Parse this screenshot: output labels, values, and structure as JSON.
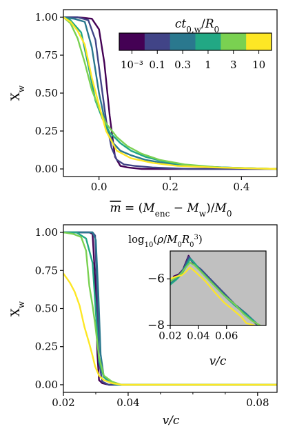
{
  "chart_data": [
    {
      "type": "line",
      "xlabel": "m̄ = (M_enc − M_w)/M_0",
      "ylabel": "X_w",
      "xlim": [
        -0.1,
        0.5
      ],
      "ylim": [
        -0.05,
        1.05
      ],
      "xticks": [
        "0.0",
        "0.2",
        "0.4"
      ],
      "yticks": [
        "0.00",
        "0.25",
        "0.50",
        "0.75",
        "1.00"
      ],
      "colorbar": {
        "title": "ct_0,w / R_0",
        "labels": [
          "10⁻³",
          "0.1",
          "0.3",
          "1",
          "3",
          "10"
        ],
        "colors": [
          "#440154",
          "#414487",
          "#2a788e",
          "#22a884",
          "#7ad151",
          "#fde725"
        ]
      },
      "series": [
        {
          "color": "#440154",
          "x": [
            -0.1,
            -0.06,
            -0.02,
            0.0,
            0.015,
            0.03,
            0.045,
            0.06,
            0.08,
            0.12,
            0.2,
            0.5
          ],
          "y": [
            1.0,
            1.0,
            0.99,
            0.92,
            0.7,
            0.35,
            0.08,
            0.02,
            0.01,
            0.0,
            0.0,
            0.0
          ]
        },
        {
          "color": "#414487",
          "x": [
            -0.1,
            -0.06,
            -0.03,
            -0.01,
            0.005,
            0.02,
            0.035,
            0.05,
            0.07,
            0.1,
            0.15,
            0.25,
            0.5
          ],
          "y": [
            1.0,
            1.0,
            0.98,
            0.85,
            0.58,
            0.32,
            0.14,
            0.06,
            0.03,
            0.02,
            0.01,
            0.0,
            0.0
          ]
        },
        {
          "color": "#2a788e",
          "x": [
            -0.1,
            -0.07,
            -0.04,
            -0.02,
            0.0,
            0.02,
            0.04,
            0.06,
            0.09,
            0.13,
            0.18,
            0.25,
            0.35,
            0.5
          ],
          "y": [
            1.0,
            0.99,
            0.97,
            0.8,
            0.5,
            0.28,
            0.17,
            0.12,
            0.09,
            0.06,
            0.04,
            0.02,
            0.01,
            0.0
          ]
        },
        {
          "color": "#22a884",
          "x": [
            -0.1,
            -0.08,
            -0.05,
            -0.03,
            -0.01,
            0.01,
            0.03,
            0.06,
            0.09,
            0.13,
            0.18,
            0.25,
            0.35,
            0.5
          ],
          "y": [
            1.0,
            0.98,
            0.9,
            0.68,
            0.45,
            0.33,
            0.24,
            0.17,
            0.12,
            0.08,
            0.05,
            0.02,
            0.01,
            0.0
          ]
        },
        {
          "color": "#7ad151",
          "x": [
            -0.1,
            -0.08,
            -0.06,
            -0.04,
            -0.02,
            0.0,
            0.02,
            0.05,
            0.08,
            0.12,
            0.17,
            0.24,
            0.34,
            0.5
          ],
          "y": [
            1.0,
            0.96,
            0.86,
            0.7,
            0.52,
            0.4,
            0.3,
            0.21,
            0.15,
            0.1,
            0.06,
            0.03,
            0.01,
            0.0
          ]
        },
        {
          "color": "#fde725",
          "x": [
            -0.1,
            -0.08,
            -0.06,
            -0.04,
            -0.02,
            0.0,
            0.02,
            0.05,
            0.09,
            0.15,
            0.22,
            0.32,
            0.5
          ],
          "y": [
            1.0,
            0.97,
            0.91,
            0.82,
            0.6,
            0.42,
            0.25,
            0.12,
            0.07,
            0.04,
            0.02,
            0.01,
            0.0
          ]
        }
      ]
    },
    {
      "type": "line",
      "xlabel": "v/c",
      "ylabel": "X_w",
      "xlim": [
        0.02,
        0.086
      ],
      "ylim": [
        -0.05,
        1.05
      ],
      "xticks": [
        "0.02",
        "0.04",
        "0.08"
      ],
      "yticks": [
        "0.00",
        "0.25",
        "0.50",
        "0.75",
        "1.00"
      ],
      "series": [
        {
          "color": "#440154",
          "x": [
            0.02,
            0.025,
            0.028,
            0.029,
            0.0298,
            0.0305,
            0.031,
            0.032,
            0.034,
            0.086
          ],
          "y": [
            1.0,
            1.0,
            1.0,
            0.99,
            0.7,
            0.2,
            0.03,
            0.01,
            0.0,
            0.0
          ]
        },
        {
          "color": "#414487",
          "x": [
            0.02,
            0.025,
            0.029,
            0.0298,
            0.0305,
            0.031,
            0.032,
            0.034,
            0.086
          ],
          "y": [
            1.0,
            1.0,
            1.0,
            0.98,
            0.55,
            0.15,
            0.02,
            0.0,
            0.0
          ]
        },
        {
          "color": "#2a788e",
          "x": [
            0.02,
            0.025,
            0.029,
            0.03,
            0.0308,
            0.0315,
            0.0325,
            0.034,
            0.036,
            0.086
          ],
          "y": [
            1.0,
            1.0,
            1.0,
            0.95,
            0.6,
            0.2,
            0.05,
            0.02,
            0.0,
            0.0
          ]
        },
        {
          "color": "#22a884",
          "x": [
            0.02,
            0.024,
            0.027,
            0.028,
            0.029,
            0.0298,
            0.031,
            0.0325,
            0.035,
            0.037,
            0.086
          ],
          "y": [
            1.0,
            1.0,
            0.96,
            0.88,
            0.8,
            0.55,
            0.15,
            0.05,
            0.01,
            0.0,
            0.0
          ]
        },
        {
          "color": "#7ad151",
          "x": [
            0.02,
            0.023,
            0.0255,
            0.027,
            0.028,
            0.029,
            0.0298,
            0.031,
            0.0325,
            0.035,
            0.038,
            0.086
          ],
          "y": [
            1.0,
            0.99,
            0.97,
            0.88,
            0.65,
            0.52,
            0.4,
            0.18,
            0.06,
            0.02,
            0.0,
            0.0
          ]
        },
        {
          "color": "#fde725",
          "x": [
            0.02,
            0.022,
            0.0235,
            0.025,
            0.0265,
            0.028,
            0.029,
            0.0298,
            0.031,
            0.0325,
            0.035,
            0.038,
            0.086
          ],
          "y": [
            0.73,
            0.67,
            0.61,
            0.52,
            0.38,
            0.27,
            0.19,
            0.12,
            0.06,
            0.03,
            0.01,
            0.0,
            0.0
          ]
        }
      ],
      "inset": {
        "title": "log₁₀(ρ/M₀R₀³)",
        "xlabel": "v/c",
        "xlim": [
          0.02,
          0.088
        ],
        "ylim": [
          -8,
          -4.8
        ],
        "xticks": [
          "0.02",
          "0.04",
          "0.06"
        ],
        "yticks": [
          "−6",
          "−8"
        ],
        "background": "#c0c0c0",
        "series": [
          {
            "color": "#440154",
            "x": [
              0.022,
              0.026,
              0.029,
              0.031,
              0.033,
              0.036,
              0.042,
              0.05,
              0.058,
              0.066,
              0.074,
              0.082
            ],
            "y": [
              -5.9,
              -5.8,
              -5.6,
              -5.3,
              -5.0,
              -5.3,
              -5.6,
              -6.1,
              -6.6,
              -7.1,
              -7.5,
              -8.0
            ]
          },
          {
            "color": "#414487",
            "x": [
              0.022,
              0.026,
              0.029,
              0.031,
              0.033,
              0.036,
              0.042,
              0.05,
              0.058,
              0.066,
              0.074,
              0.082
            ],
            "y": [
              -5.95,
              -5.85,
              -5.65,
              -5.35,
              -5.05,
              -5.3,
              -5.6,
              -6.1,
              -6.6,
              -7.1,
              -7.5,
              -8.0
            ]
          },
          {
            "color": "#2a788e",
            "x": [
              0.02,
              0.024,
              0.028,
              0.031,
              0.034,
              0.037,
              0.042,
              0.05,
              0.058,
              0.066,
              0.074,
              0.083
            ],
            "y": [
              -6.2,
              -6.0,
              -5.7,
              -5.4,
              -5.1,
              -5.3,
              -5.65,
              -6.15,
              -6.65,
              -7.1,
              -7.5,
              -8.0
            ]
          },
          {
            "color": "#22a884",
            "x": [
              0.02,
              0.024,
              0.028,
              0.031,
              0.034,
              0.037,
              0.042,
              0.05,
              0.058,
              0.066,
              0.074,
              0.083
            ],
            "y": [
              -6.25,
              -6.05,
              -5.8,
              -5.5,
              -5.15,
              -5.3,
              -5.7,
              -6.2,
              -6.7,
              -7.15,
              -7.55,
              -8.0
            ]
          },
          {
            "color": "#7ad151",
            "x": [
              0.02,
              0.024,
              0.028,
              0.031,
              0.034,
              0.037,
              0.042,
              0.05,
              0.058,
              0.066,
              0.072,
              0.078,
              0.084
            ],
            "y": [
              -6.1,
              -5.95,
              -5.75,
              -5.5,
              -5.3,
              -5.4,
              -5.7,
              -6.2,
              -6.7,
              -7.1,
              -7.5,
              -7.8,
              -8.0
            ]
          },
          {
            "color": "#fde725",
            "x": [
              0.02,
              0.024,
              0.028,
              0.031,
              0.034,
              0.038,
              0.045,
              0.052,
              0.058,
              0.064,
              0.07,
              0.074,
              0.08
            ],
            "y": [
              -6.0,
              -5.9,
              -5.85,
              -5.7,
              -5.5,
              -5.7,
              -6.1,
              -6.6,
              -7.0,
              -7.3,
              -7.6,
              -7.9,
              -8.0
            ]
          }
        ]
      }
    }
  ]
}
